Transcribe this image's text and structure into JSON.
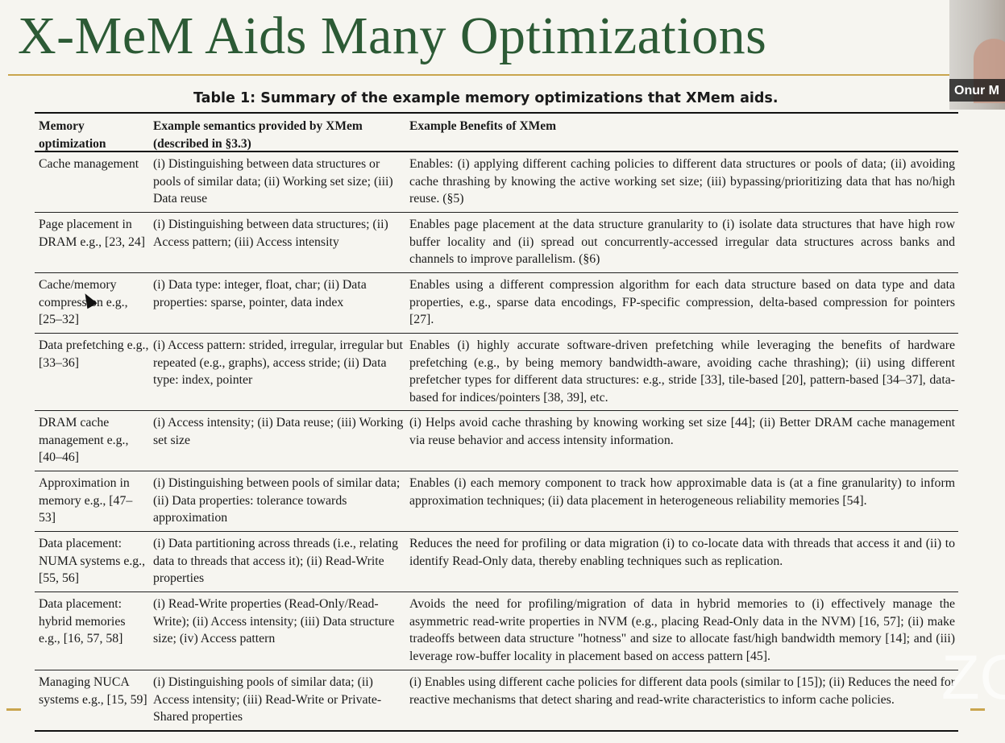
{
  "slide": {
    "title": "X-MeM Aids Many Optimizations"
  },
  "presenter": {
    "name": "Onur M"
  },
  "watermark": {
    "text": "ZO"
  },
  "table": {
    "caption": "Table 1: Summary of the example memory optimizations that XMem aids.",
    "headers": [
      "Memory optimization",
      "Example semantics provided by XMem (described in §3.3)",
      "Example Benefits of XMem"
    ],
    "rows": [
      {
        "optimization": "Cache management",
        "semantics": "(i) Distinguishing between data structures or pools of similar data; (ii) Working set size; (iii) Data reuse",
        "benefits": "Enables: (i) applying different caching policies to different data structures or pools of data; (ii) avoiding cache thrashing by knowing the active working set size; (iii) bypassing/prioritizing data that has no/high reuse. (§5)"
      },
      {
        "optimization": "Page placement in DRAM e.g., [23, 24]",
        "semantics": "(i) Distinguishing between data structures; (ii) Access pattern; (iii) Access intensity",
        "benefits": "Enables page placement at the data structure granularity to (i) isolate data structures that have high row buffer locality and (ii) spread out concurrently-accessed irregular data structures across banks and channels to improve parallelism. (§6)"
      },
      {
        "optimization": "Cache/memory compression e.g., [25–32]",
        "semantics": "(i) Data type: integer, float, char; (ii) Data properties: sparse, pointer, data index",
        "benefits": "Enables using a different compression algorithm for each data structure based on data type and data properties, e.g., sparse data encodings, FP-specific compression, delta-based compression for pointers [27]."
      },
      {
        "optimization": "Data prefetching e.g., [33–36]",
        "semantics": "(i) Access pattern: strided, irregular, irregular but repeated (e.g., graphs), access stride; (ii) Data type: index, pointer",
        "benefits": "Enables (i) highly accurate software-driven prefetching while leveraging the benefits of hardware prefetching (e.g., by being memory bandwidth-aware, avoiding cache thrashing); (ii) using different prefetcher types for different data structures: e.g., stride [33], tile-based [20], pattern-based [34–37], data-based for indices/pointers [38, 39], etc."
      },
      {
        "optimization": "DRAM cache management e.g., [40–46]",
        "semantics": "(i) Access intensity; (ii) Data reuse; (iii) Working set size",
        "benefits": "(i) Helps avoid cache thrashing by knowing working set size [44]; (ii) Better DRAM cache management via reuse behavior and access intensity information."
      },
      {
        "optimization": "Approximation in memory e.g., [47–53]",
        "semantics": "(i) Distinguishing between pools of similar data; (ii) Data properties: tolerance towards approximation",
        "benefits": "Enables (i) each memory component to track how approximable data is (at a fine granularity) to inform approximation techniques; (ii) data placement in heterogeneous reliability memories [54]."
      },
      {
        "optimization": "Data placement: NUMA systems e.g., [55, 56]",
        "semantics": "(i) Data partitioning across threads (i.e., relating data to threads that access it); (ii) Read-Write properties",
        "benefits": "Reduces the need for profiling or data migration (i) to co-locate data with threads that access it and (ii) to identify Read-Only data, thereby enabling techniques such as replication."
      },
      {
        "optimization": "Data placement: hybrid memories e.g., [16, 57, 58]",
        "semantics": "(i) Read-Write properties (Read-Only/Read-Write); (ii) Access intensity; (iii) Data structure size; (iv) Access pattern",
        "benefits": "Avoids the need for profiling/migration of data in hybrid memories to (i) effectively manage the asymmetric read-write properties in NVM (e.g., placing Read-Only data in the NVM) [16, 57]; (ii) make tradeoffs between data structure \"hotness\" and size to allocate fast/high bandwidth memory [14]; and (iii) leverage row-buffer locality in placement based on access pattern [45]."
      },
      {
        "optimization": "Managing NUCA systems e.g., [15, 59]",
        "semantics": "(i) Distinguishing pools of similar data; (ii) Access intensity; (iii) Read-Write or Private-Shared properties",
        "benefits": "(i) Enables using different cache policies for different data pools (similar to [15]); (ii) Reduces the need for reactive mechanisms that detect sharing and read-write characteristics to inform cache policies."
      }
    ]
  }
}
